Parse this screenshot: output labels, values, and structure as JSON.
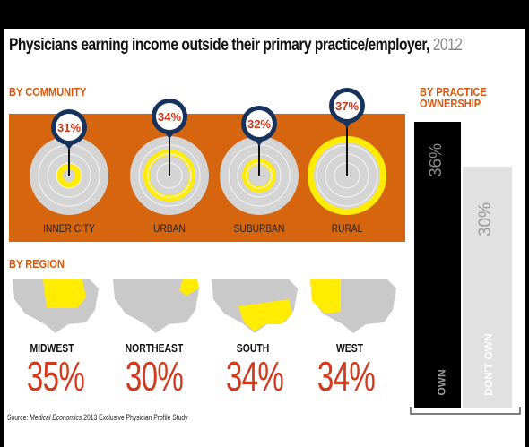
{
  "title": {
    "main": "Physicians earning income outside their primary practice/employer,",
    "year": "2012"
  },
  "sections": {
    "community": "BY COMMUNITY",
    "region": "BY REGION",
    "ownership_line1": "BY PRACTICE",
    "ownership_line2": "OWNERSHIP"
  },
  "source": {
    "prefix": "Source:",
    "publication": "Medical Economics",
    "rest": "2013 Exclusive Physician Profile Study"
  },
  "colors": {
    "orange": "#d5650e",
    "yellow": "#ffec00",
    "navy": "#17325c",
    "red": "#d23a1e",
    "gray_bar": "#e1e1e1"
  },
  "chart_data": [
    {
      "type": "bar",
      "group": "community",
      "categories": [
        "INNER CITY",
        "URBAN",
        "SUBURBAN",
        "RURAL"
      ],
      "values": [
        31,
        34,
        32,
        37
      ],
      "labels": [
        "31%",
        "34%",
        "32%",
        "37%"
      ]
    },
    {
      "type": "bar",
      "group": "region",
      "categories": [
        "MIDWEST",
        "NORTHEAST",
        "SOUTH",
        "WEST"
      ],
      "values": [
        35,
        30,
        34,
        34
      ],
      "labels": [
        "35%",
        "30%",
        "34%",
        "34%"
      ]
    },
    {
      "type": "bar",
      "group": "ownership",
      "categories": [
        "OWN",
        "DON'T OWN"
      ],
      "values": [
        36,
        30
      ],
      "labels": [
        "36%",
        "30%"
      ]
    }
  ]
}
